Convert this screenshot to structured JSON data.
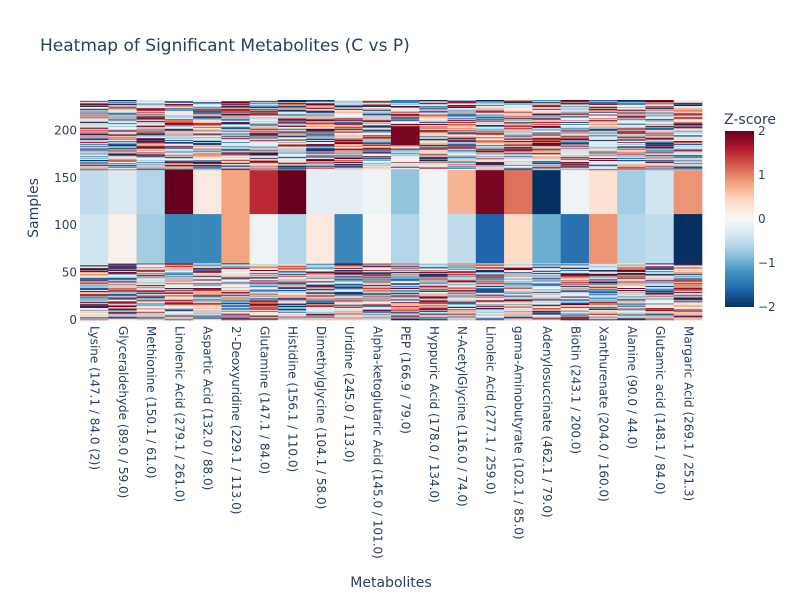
{
  "chart_data": {
    "type": "heatmap",
    "title": "Heatmap of Significant Metabolites (C vs P)",
    "xlabel": "Metabolites",
    "ylabel": "Samples",
    "categories": [
      "Lysine (147.1 / 84.0 (2))",
      "Glyceraldehyde (89.0 / 59.0)",
      "Methionine (150.1 / 61.0)",
      "Linolenic Acid (279.1 / 261.0)",
      "Aspartic Acid (132.0 / 88.0)",
      "2'-Deoxyuridine (229.1 / 113.0)",
      "Glutamine (147.1 / 84.0)",
      "Histidine (156.1 / 110.0)",
      "Dimethylglycine (104.1 / 58.0)",
      "Uridine (245.0 / 113.0)",
      "Alpha-ketoglutaric Acid (145.0 / 101.0)",
      "PEP (166.9 / 79.0)",
      "Hyppuric Acid (178.0 / 134.0)",
      "N-AcetylGlycine (116.0 / 74.0)",
      "Linoleic Acid (277.1 / 259.0)",
      "gama-Aminobutyrate (102.1 / 85.0)",
      "Adenylosuccinate (462.1 / 79.0)",
      "Biotin (243.1 / 200.0)",
      "Xanthurenate (204.0 / 160.0)",
      "Alanine (90.0 / 44.0)",
      "Glutamic acid (148.1 / 84.0)",
      "Margaric Acid (269.1 / 251.3)"
    ],
    "yticks": [
      0,
      50,
      100,
      150,
      200
    ],
    "ylim": [
      0,
      232
    ],
    "colorbar": {
      "title": "Z-score",
      "range": [
        -2,
        2
      ],
      "ticks": [
        -2,
        -1,
        0,
        1,
        2
      ],
      "colorscale": "RdBu"
    },
    "block_rows": [
      {
        "y_range": [
          60,
          112
        ],
        "values": [
          -0.4,
          0.1,
          -0.7,
          -1.3,
          -1.3,
          0.8,
          -0.1,
          -0.6,
          0.2,
          -1.3,
          0.0,
          -0.6,
          -0.1,
          -0.5,
          -1.6,
          0.4,
          -1.0,
          -1.5,
          0.9,
          -0.6,
          -0.5,
          -2.0
        ]
      },
      {
        "y_range": [
          112,
          158
        ],
        "values": [
          -0.5,
          -0.3,
          -0.6,
          2.0,
          0.2,
          0.8,
          1.5,
          2.0,
          -0.2,
          -0.2,
          -0.1,
          -0.8,
          -0.1,
          0.7,
          1.9,
          1.1,
          -2.0,
          -0.1,
          0.3,
          -0.7,
          -0.4,
          0.9
        ]
      },
      {
        "y_range": [
          185,
          204
        ],
        "column": 11,
        "value": 1.9
      }
    ],
    "noise_rows": [
      [
        0,
        60
      ],
      [
        158,
        232
      ]
    ]
  }
}
